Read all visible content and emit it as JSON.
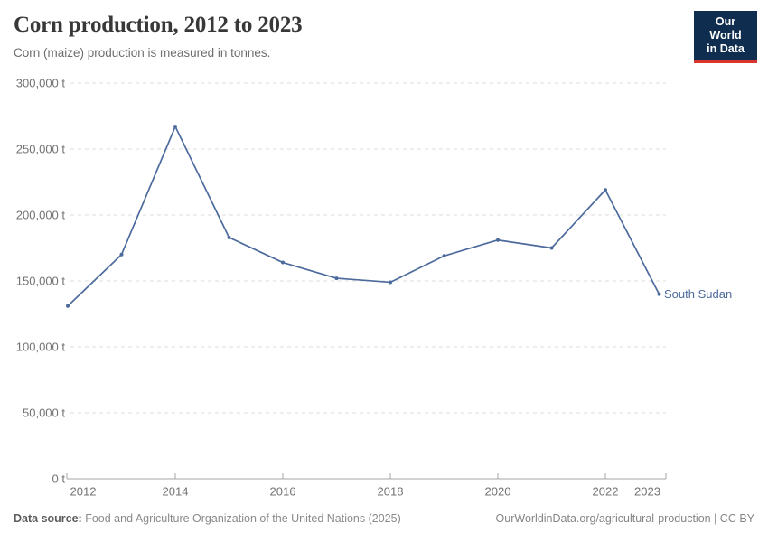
{
  "header": {
    "title": "Corn production, 2012 to 2023",
    "subtitle": "Corn (maize) production is measured in tonnes.",
    "logo": {
      "line1": "Our World",
      "line2": "in Data",
      "bg_color": "#0f2d4e",
      "accent_color": "#d8352f",
      "text_color": "#ffffff"
    }
  },
  "chart_data": {
    "type": "line",
    "title": "Corn production, 2012 to 2023",
    "subtitle": "Corn (maize) production is measured in tonnes.",
    "unit": "t",
    "x": [
      2012,
      2013,
      2014,
      2015,
      2016,
      2017,
      2018,
      2019,
      2020,
      2021,
      2022,
      2023
    ],
    "series": [
      {
        "name": "South Sudan",
        "color": "#4C6A9C",
        "values": [
          131000,
          170000,
          267000,
          183000,
          164000,
          152000,
          149000,
          169000,
          181000,
          175000,
          219000,
          140000
        ]
      }
    ],
    "ylim": [
      0,
      300000
    ],
    "y_ticks": [
      {
        "value": 0,
        "label": "0 t"
      },
      {
        "value": 50000,
        "label": "50,000 t"
      },
      {
        "value": 100000,
        "label": "100,000 t"
      },
      {
        "value": 150000,
        "label": "150,000 t"
      },
      {
        "value": 200000,
        "label": "200,000 t"
      },
      {
        "value": 250000,
        "label": "250,000 t"
      },
      {
        "value": 300000,
        "label": "300,000 t"
      }
    ],
    "x_tick_labels": [
      "2012",
      "2014",
      "2016",
      "2018",
      "2020",
      "2022",
      "2023"
    ],
    "x_axis_tick_years": [
      2014,
      2016,
      2018,
      2020,
      2022
    ],
    "grid": "horizontal-dashed",
    "legend": "line-end-label",
    "colors": {
      "grid": "#dcdcdc",
      "axis": "#a5a5a5",
      "tick_label": "#737373"
    }
  },
  "footer": {
    "source_label": "Data source:",
    "source_text": "Food and Agriculture Organization of the United Nations (2025)",
    "link_text": "OurWorldinData.org/agricultural-production | CC BY"
  }
}
